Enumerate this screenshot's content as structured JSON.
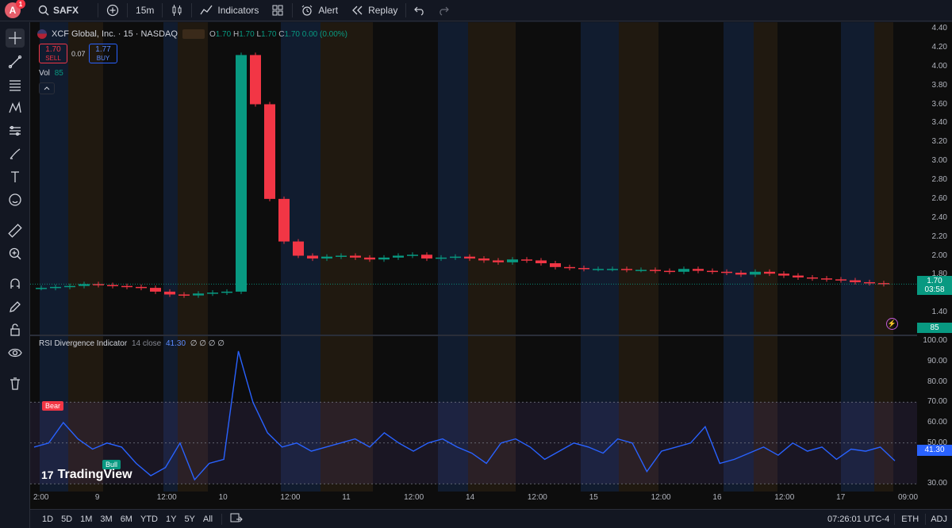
{
  "topbar": {
    "avatar_letter": "A",
    "notif_count": "1",
    "symbol": "SAFX",
    "interval": "15m",
    "indicators_label": "Indicators",
    "alert_label": "Alert",
    "replay_label": "Replay"
  },
  "legend": {
    "title": "XCF Global, Inc. · 15 · NASDAQ",
    "o_label": "O",
    "o": "1.70",
    "h_label": "H",
    "h": "1.70",
    "l_label": "L",
    "l": "1.70",
    "c_label": "C",
    "c": "1.70",
    "change": "0.00 (0.00%)",
    "sell_price": "1.70",
    "sell_label": "SELL",
    "spread": "0.07",
    "buy_price": "1.77",
    "buy_label": "BUY",
    "vol_label": "Vol",
    "vol_value": "85"
  },
  "rsi_legend": {
    "name": "RSI Divergence Indicator",
    "params": "14 close",
    "value": "41.30",
    "nulls": "∅ ∅ ∅ ∅"
  },
  "price_axis": [
    "4.40",
    "4.20",
    "4.00",
    "3.80",
    "3.60",
    "3.40",
    "3.20",
    "3.00",
    "2.80",
    "2.60",
    "2.40",
    "2.20",
    "2.00",
    "1.80",
    "1.40"
  ],
  "price_tag": {
    "price": "1.70",
    "countdown": "03:58",
    "vol": "85"
  },
  "rsi_axis": [
    "100.00",
    "90.00",
    "80.00",
    "70.00",
    "60.00",
    "50.00",
    "30.00"
  ],
  "rsi_tag": "41.30",
  "time_axis": [
    "2:00",
    "9",
    "12:00",
    "10",
    "12:00",
    "11",
    "12:00",
    "14",
    "12:00",
    "15",
    "12:00",
    "16",
    "12:00",
    "17",
    "09:00"
  ],
  "labels": {
    "bear": "Bear",
    "bull": "Bull",
    "watermark": "TradingView"
  },
  "bottombar": {
    "timeframes": [
      "1D",
      "5D",
      "1M",
      "3M",
      "6M",
      "YTD",
      "1Y",
      "5Y",
      "All"
    ],
    "clock": "07:26:01 UTC-4",
    "session": "ETH",
    "adj": "ADJ"
  },
  "colors": {
    "up": "#089981",
    "down": "#f23645",
    "rsi": "#2962ff",
    "bg": "#131722"
  },
  "chart_data": {
    "type": "line",
    "price_series": {
      "name": "XCF Global, Inc.",
      "values": [
        1.66,
        1.67,
        1.68,
        1.7,
        1.69,
        1.68,
        1.67,
        1.66,
        1.62,
        1.59,
        1.58,
        1.6,
        1.61,
        1.62,
        4.12,
        3.6,
        2.6,
        2.15,
        2.0,
        1.97,
        1.99,
        2.0,
        1.98,
        1.96,
        1.98,
        2.0,
        2.01,
        1.97,
        1.98,
        1.99,
        1.97,
        1.95,
        1.93,
        1.96,
        1.95,
        1.92,
        1.88,
        1.87,
        1.86,
        1.86,
        1.86,
        1.85,
        1.85,
        1.84,
        1.83,
        1.86,
        1.84,
        1.83,
        1.82,
        1.8,
        1.83,
        1.81,
        1.79,
        1.77,
        1.76,
        1.75,
        1.74,
        1.72,
        1.71,
        1.7
      ]
    },
    "rsi_series": {
      "name": "RSI",
      "values": [
        48,
        50,
        60,
        52,
        47,
        50,
        48,
        40,
        34,
        38,
        50,
        32,
        40,
        42,
        95,
        70,
        55,
        48,
        50,
        46,
        48,
        50,
        52,
        48,
        55,
        50,
        46,
        50,
        52,
        48,
        45,
        40,
        50,
        52,
        48,
        42,
        46,
        50,
        48,
        45,
        52,
        50,
        36,
        46,
        48,
        50,
        58,
        40,
        42,
        45,
        48,
        44,
        50,
        46,
        48,
        42,
        47,
        46,
        48,
        41.3
      ]
    },
    "ylim_price": [
      1.2,
      4.4
    ],
    "ylim_rsi": [
      27,
      100
    ]
  }
}
